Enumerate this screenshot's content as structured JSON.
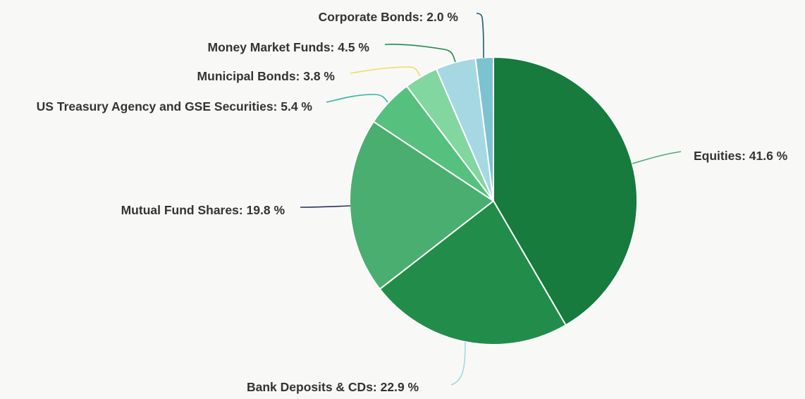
{
  "chart_data": {
    "type": "pie",
    "title": "",
    "categories": [
      "Equities",
      "Bank Deposits & CDs",
      "Mutual Fund Shares",
      "US Treasury Agency and GSE Securities",
      "Municipal Bonds",
      "Money Market Funds",
      "Corporate Bonds"
    ],
    "values": [
      41.6,
      22.9,
      19.8,
      5.4,
      3.8,
      4.5,
      2.0
    ],
    "unit": "%",
    "colors": [
      "#167b3c",
      "#228d4a",
      "#4aae71",
      "#56c07f",
      "#82d6a0",
      "#a5d8e2",
      "#7cc2d0"
    ],
    "leader_colors": [
      "#4aae71",
      "#a5d8e2",
      "#2c3356",
      "#2fb4a1",
      "#f0dc5c",
      "#228d4a",
      "#1c5a73"
    ],
    "labels": [
      "Equities: 41.6 %",
      "Bank Deposits & CDs: 22.9 %",
      "Mutual Fund Shares: 19.8 %",
      "US Treasury Agency and GSE Securities: 5.4 %",
      "Municipal Bonds: 3.8 %",
      "Money Market Funds: 4.5 %",
      "Corporate Bonds: 2.0 %"
    ],
    "legend": "none",
    "grid": false
  }
}
